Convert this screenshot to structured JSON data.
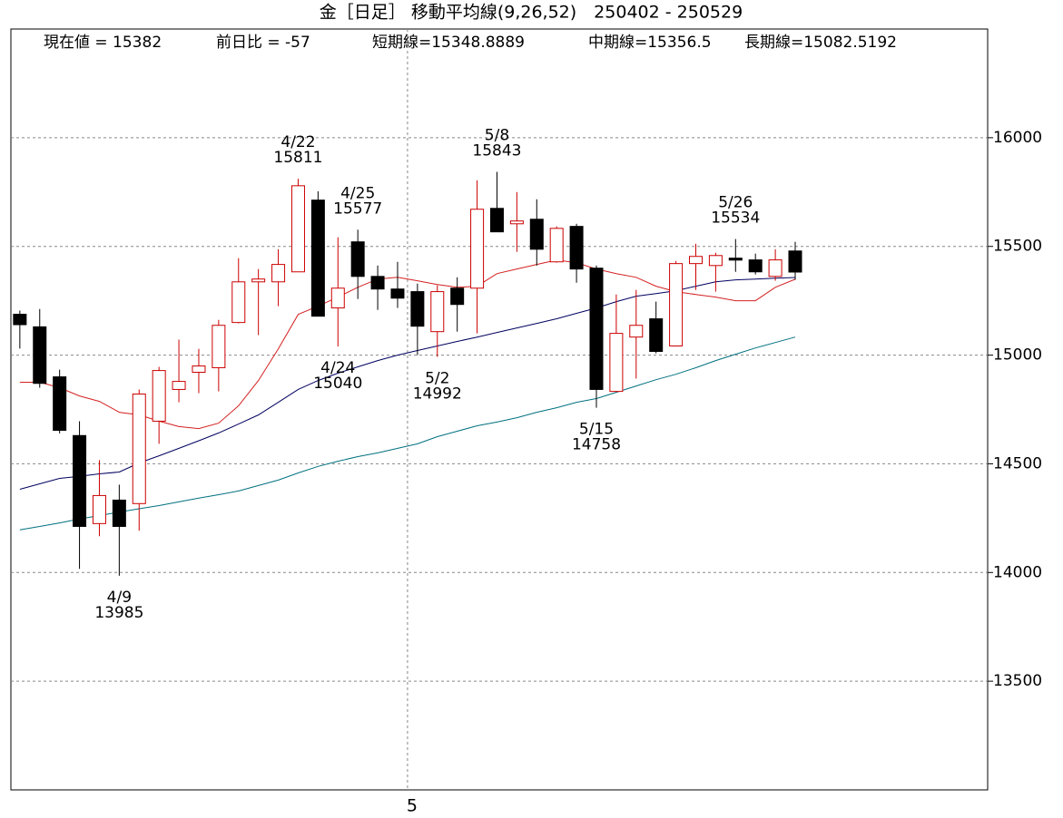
{
  "chart_data": {
    "type": "candlestick",
    "title": "金［日足］ 移動平均線(9,26,52)　250402 - 250529",
    "info": [
      "現在値 = 15382",
      "前日比 = -57",
      "短期線=15348.8889",
      "中期線=15356.5",
      "長期線=15082.5192"
    ],
    "categories": [
      null,
      null,
      null,
      null,
      null,
      null,
      null,
      null,
      null,
      null,
      null,
      null,
      null,
      null,
      null,
      null,
      null,
      null,
      null,
      null,
      null,
      null,
      null,
      null,
      null,
      null,
      null,
      null,
      null,
      null,
      null,
      null,
      null,
      null,
      null,
      null,
      null,
      null,
      null,
      null
    ],
    "xlim": [
      -0.45,
      48.68
    ],
    "xticks": [
      {
        "value": 19.5,
        "label": "5"
      }
    ],
    "ylim": [
      13000,
      16500
    ],
    "yticks": [
      13500,
      14000,
      14500,
      15000,
      15500,
      16000
    ],
    "grid": true,
    "up_color": "#cc0000",
    "down_color": "#000000",
    "candles": {
      "open": [
        15188,
        15130,
        14900,
        14630,
        14225,
        14333,
        14317,
        14696,
        14842,
        14921,
        14942,
        15150,
        15337,
        15337,
        15383,
        15713,
        15217,
        15521,
        15362,
        15304,
        15292,
        15108,
        15308,
        15308,
        15675,
        15604,
        15625,
        15429,
        15592,
        15400,
        14833,
        15083,
        15167,
        15042,
        15421,
        15412,
        15446,
        15438,
        15362,
        15479
      ],
      "high": [
        15205,
        15212,
        14933,
        14696,
        14517,
        14404,
        14842,
        14946,
        15071,
        15029,
        15162,
        15446,
        15396,
        15487,
        15811,
        15754,
        15542,
        15577,
        15412,
        15429,
        15329,
        15321,
        15358,
        15804,
        15843,
        15750,
        15717,
        15592,
        15604,
        15412,
        15279,
        15300,
        15246,
        15433,
        15512,
        15471,
        15534,
        15467,
        15487,
        15521
      ],
      "low": [
        15030,
        14850,
        14640,
        14017,
        14167,
        13985,
        14192,
        14592,
        14783,
        14825,
        14833,
        15146,
        15092,
        15225,
        15383,
        15179,
        15040,
        15258,
        15208,
        15217,
        15000,
        14992,
        15108,
        15100,
        15567,
        15475,
        15412,
        15425,
        15333,
        14758,
        14829,
        14892,
        15008,
        15042,
        15300,
        15292,
        15383,
        15371,
        15342,
        15346
      ],
      "close": [
        15140,
        14870,
        14654,
        14212,
        14354,
        14212,
        14821,
        14929,
        14879,
        14950,
        15137,
        15337,
        15350,
        15417,
        15779,
        15179,
        15308,
        15362,
        15304,
        15262,
        15133,
        15292,
        15233,
        15671,
        15567,
        15617,
        15487,
        15583,
        15396,
        14842,
        15100,
        15137,
        15017,
        15421,
        15454,
        15458,
        15437,
        15383,
        15438,
        15382
      ]
    },
    "series": [
      {
        "color": "#d42020",
        "values": [
          14875,
          14875,
          14850,
          14812,
          14787,
          14737,
          14725,
          14696,
          14671,
          14662,
          14687,
          14767,
          14883,
          15029,
          15187,
          15225,
          15267,
          15312,
          15350,
          15358,
          15342,
          15325,
          15312,
          15317,
          15375,
          15396,
          15417,
          15437,
          15425,
          15396,
          15375,
          15358,
          15317,
          15292,
          15279,
          15267,
          15250,
          15250,
          15312,
          15349
        ]
      },
      {
        "color": "#000060",
        "values": [
          14383,
          14408,
          14433,
          14442,
          14454,
          14462,
          14504,
          14537,
          14571,
          14606,
          14642,
          14683,
          14725,
          14783,
          14842,
          14883,
          14917,
          14946,
          14975,
          15000,
          15021,
          15042,
          15063,
          15083,
          15104,
          15125,
          15146,
          15167,
          15192,
          15217,
          15246,
          15271,
          15283,
          15296,
          15317,
          15337,
          15346,
          15350,
          15354,
          15357
        ]
      },
      {
        "color": "#007080",
        "values": [
          14196,
          14212,
          14228,
          14246,
          14262,
          14278,
          14293,
          14308,
          14325,
          14342,
          14358,
          14375,
          14400,
          14425,
          14458,
          14488,
          14512,
          14533,
          14550,
          14571,
          14592,
          14625,
          14650,
          14675,
          14692,
          14712,
          14737,
          14758,
          14783,
          14800,
          14829,
          14858,
          14887,
          14912,
          14942,
          14975,
          15004,
          15033,
          15058,
          15083
        ]
      }
    ],
    "annotations": [
      {
        "candle": 5,
        "date": "4/9",
        "value": 13985,
        "position": "below"
      },
      {
        "candle": 14,
        "date": "4/22",
        "value": 15811,
        "position": "above"
      },
      {
        "candle": 16,
        "date": "4/24",
        "value": 15040,
        "position": "below"
      },
      {
        "candle": 17,
        "date": "4/25",
        "value": 15577,
        "position": "above"
      },
      {
        "candle": 21,
        "date": "5/2",
        "value": 14992,
        "position": "below"
      },
      {
        "candle": 24,
        "date": "5/8",
        "value": 15843,
        "position": "above"
      },
      {
        "candle": 29,
        "date": "5/15",
        "value": 14758,
        "position": "below"
      },
      {
        "candle": 36,
        "date": "5/26",
        "value": 15534,
        "position": "above"
      }
    ]
  }
}
